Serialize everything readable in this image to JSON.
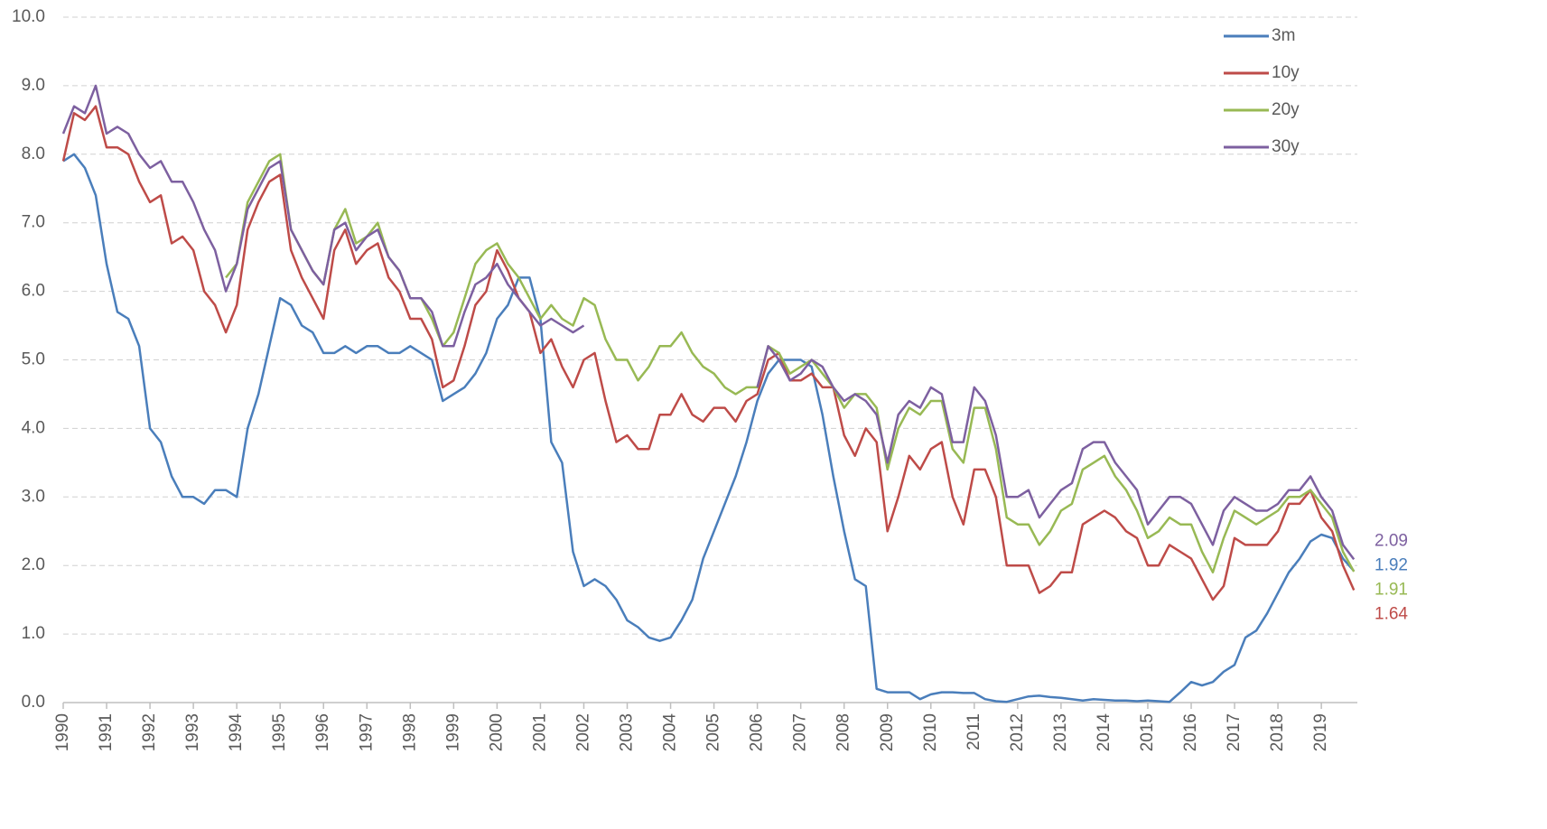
{
  "chart_data": {
    "type": "line",
    "x": [
      1990,
      1990.25,
      1990.5,
      1990.75,
      1991,
      1991.25,
      1991.5,
      1991.75,
      1992,
      1992.25,
      1992.5,
      1992.75,
      1993,
      1993.25,
      1993.5,
      1993.75,
      1994,
      1994.25,
      1994.5,
      1994.75,
      1995,
      1995.25,
      1995.5,
      1995.75,
      1996,
      1996.25,
      1996.5,
      1996.75,
      1997,
      1997.25,
      1997.5,
      1997.75,
      1998,
      1998.25,
      1998.5,
      1998.75,
      1999,
      1999.25,
      1999.5,
      1999.75,
      2000,
      2000.25,
      2000.5,
      2000.75,
      2001,
      2001.25,
      2001.5,
      2001.75,
      2002,
      2002.25,
      2002.5,
      2002.75,
      2003,
      2003.25,
      2003.5,
      2003.75,
      2004,
      2004.25,
      2004.5,
      2004.75,
      2005,
      2005.25,
      2005.5,
      2005.75,
      2006,
      2006.25,
      2006.5,
      2006.75,
      2007,
      2007.25,
      2007.5,
      2007.75,
      2008,
      2008.25,
      2008.5,
      2008.75,
      2009,
      2009.25,
      2009.5,
      2009.75,
      2010,
      2010.25,
      2010.5,
      2010.75,
      2011,
      2011.25,
      2011.5,
      2011.75,
      2012,
      2012.25,
      2012.5,
      2012.75,
      2013,
      2013.25,
      2013.5,
      2013.75,
      2014,
      2014.25,
      2014.5,
      2014.75,
      2015,
      2015.25,
      2015.5,
      2015.75,
      2016,
      2016.25,
      2016.5,
      2016.75,
      2017,
      2017.25,
      2017.5,
      2017.75,
      2018,
      2018.25,
      2018.5,
      2018.75,
      2019,
      2019.25,
      2019.5,
      2019.75
    ],
    "series": [
      {
        "name": "3m",
        "color": "#4a7ebb",
        "values": [
          7.9,
          8.0,
          7.8,
          7.4,
          6.4,
          5.7,
          5.6,
          5.2,
          4.0,
          3.8,
          3.3,
          3.0,
          3.0,
          2.9,
          3.1,
          3.1,
          3.0,
          4.0,
          4.5,
          5.2,
          5.9,
          5.8,
          5.5,
          5.4,
          5.1,
          5.1,
          5.2,
          5.1,
          5.2,
          5.2,
          5.1,
          5.1,
          5.2,
          5.1,
          5.0,
          4.4,
          4.5,
          4.6,
          4.8,
          5.1,
          5.6,
          5.8,
          6.2,
          6.2,
          5.6,
          3.8,
          3.5,
          2.2,
          1.7,
          1.8,
          1.7,
          1.5,
          1.2,
          1.1,
          0.95,
          0.9,
          0.95,
          1.2,
          1.5,
          2.1,
          2.5,
          2.9,
          3.3,
          3.8,
          4.4,
          4.8,
          5.0,
          5.0,
          5.0,
          4.9,
          4.2,
          3.3,
          2.5,
          1.8,
          1.7,
          0.2,
          0.15,
          0.15,
          0.15,
          0.05,
          0.12,
          0.15,
          0.15,
          0.14,
          0.14,
          0.05,
          0.02,
          0.01,
          0.05,
          0.09,
          0.1,
          0.08,
          0.07,
          0.05,
          0.03,
          0.05,
          0.04,
          0.03,
          0.03,
          0.02,
          0.03,
          0.02,
          0.01,
          0.15,
          0.3,
          0.25,
          0.3,
          0.45,
          0.55,
          0.95,
          1.05,
          1.3,
          1.6,
          1.9,
          2.1,
          2.35,
          2.45,
          2.4,
          2.1,
          1.92
        ]
      },
      {
        "name": "10y",
        "color": "#be4b48",
        "values": [
          7.9,
          8.6,
          8.5,
          8.7,
          8.1,
          8.1,
          8.0,
          7.6,
          7.3,
          7.4,
          6.7,
          6.8,
          6.6,
          6.0,
          5.8,
          5.4,
          5.8,
          6.9,
          7.3,
          7.6,
          7.7,
          6.6,
          6.2,
          5.9,
          5.6,
          6.6,
          6.9,
          6.4,
          6.6,
          6.7,
          6.2,
          6.0,
          5.6,
          5.6,
          5.3,
          4.6,
          4.7,
          5.2,
          5.8,
          6.0,
          6.6,
          6.3,
          5.9,
          5.7,
          5.1,
          5.3,
          4.9,
          4.6,
          5.0,
          5.1,
          4.4,
          3.8,
          3.9,
          3.7,
          3.7,
          4.2,
          4.2,
          4.5,
          4.2,
          4.1,
          4.3,
          4.3,
          4.1,
          4.4,
          4.5,
          5.0,
          5.1,
          4.7,
          4.7,
          4.8,
          4.6,
          4.6,
          3.9,
          3.6,
          4.0,
          3.8,
          2.5,
          3.0,
          3.6,
          3.4,
          3.7,
          3.8,
          3.0,
          2.6,
          3.4,
          3.4,
          3.0,
          2.0,
          2.0,
          2.0,
          1.6,
          1.7,
          1.9,
          1.9,
          2.6,
          2.7,
          2.8,
          2.7,
          2.5,
          2.4,
          2.0,
          2.0,
          2.3,
          2.2,
          2.1,
          1.8,
          1.5,
          1.7,
          2.4,
          2.3,
          2.3,
          2.3,
          2.5,
          2.9,
          2.9,
          3.1,
          2.7,
          2.5,
          2.0,
          1.64
        ]
      },
      {
        "name": "20y",
        "color": "#98b954",
        "values": [
          null,
          null,
          null,
          null,
          null,
          null,
          null,
          null,
          null,
          null,
          null,
          null,
          null,
          null,
          null,
          6.2,
          6.4,
          7.3,
          7.6,
          7.9,
          8.0,
          6.9,
          6.6,
          6.3,
          6.1,
          6.9,
          7.2,
          6.7,
          6.8,
          7.0,
          6.5,
          6.3,
          5.9,
          5.9,
          5.6,
          5.2,
          5.4,
          5.9,
          6.4,
          6.6,
          6.7,
          6.4,
          6.2,
          5.9,
          5.6,
          5.8,
          5.6,
          5.5,
          5.9,
          5.8,
          5.3,
          5.0,
          5.0,
          4.7,
          4.9,
          5.2,
          5.2,
          5.4,
          5.1,
          4.9,
          4.8,
          4.6,
          4.5,
          4.6,
          4.6,
          5.2,
          5.1,
          4.8,
          4.9,
          5.0,
          4.8,
          4.6,
          4.3,
          4.5,
          4.5,
          4.3,
          3.4,
          4.0,
          4.3,
          4.2,
          4.4,
          4.4,
          3.7,
          3.5,
          4.3,
          4.3,
          3.7,
          2.7,
          2.6,
          2.6,
          2.3,
          2.5,
          2.8,
          2.9,
          3.4,
          3.5,
          3.6,
          3.3,
          3.1,
          2.8,
          2.4,
          2.5,
          2.7,
          2.6,
          2.6,
          2.2,
          1.9,
          2.4,
          2.8,
          2.7,
          2.6,
          2.7,
          2.8,
          3.0,
          3.0,
          3.1,
          2.9,
          2.7,
          2.2,
          1.91
        ]
      },
      {
        "name": "30y",
        "color": "#7d60a0",
        "values": [
          8.3,
          8.7,
          8.6,
          9.0,
          8.3,
          8.4,
          8.3,
          8.0,
          7.8,
          7.9,
          7.6,
          7.6,
          7.3,
          6.9,
          6.6,
          6.0,
          6.4,
          7.2,
          7.5,
          7.8,
          7.9,
          6.9,
          6.6,
          6.3,
          6.1,
          6.9,
          7.0,
          6.6,
          6.8,
          6.9,
          6.5,
          6.3,
          5.9,
          5.9,
          5.7,
          5.2,
          5.2,
          5.7,
          6.1,
          6.2,
          6.4,
          6.1,
          5.9,
          5.7,
          5.5,
          5.6,
          5.5,
          5.4,
          5.5,
          null,
          null,
          null,
          null,
          null,
          null,
          null,
          null,
          null,
          null,
          null,
          null,
          null,
          null,
          null,
          4.6,
          5.2,
          5.0,
          4.7,
          4.8,
          5.0,
          4.9,
          4.6,
          4.4,
          4.5,
          4.4,
          4.2,
          3.5,
          4.2,
          4.4,
          4.3,
          4.6,
          4.5,
          3.8,
          3.8,
          4.6,
          4.4,
          3.9,
          3.0,
          3.0,
          3.1,
          2.7,
          2.9,
          3.1,
          3.2,
          3.7,
          3.8,
          3.8,
          3.5,
          3.3,
          3.1,
          2.6,
          2.8,
          3.0,
          3.0,
          2.9,
          2.6,
          2.3,
          2.8,
          3.0,
          2.9,
          2.8,
          2.8,
          2.9,
          3.1,
          3.1,
          3.3,
          3.0,
          2.8,
          2.3,
          2.09
        ]
      }
    ],
    "xlim": [
      1990,
      2019.83
    ],
    "xticks": [
      1990,
      1991,
      1992,
      1993,
      1994,
      1995,
      1996,
      1997,
      1998,
      1999,
      2000,
      2001,
      2002,
      2003,
      2004,
      2005,
      2006,
      2007,
      2008,
      2009,
      2010,
      2011,
      2012,
      2013,
      2014,
      2015,
      2016,
      2017,
      2018,
      2019
    ],
    "ylim": [
      0,
      10
    ],
    "yticks": [
      {
        "value": 0,
        "label": "0.0"
      },
      {
        "value": 1,
        "label": "1.0"
      },
      {
        "value": 2,
        "label": "2.0"
      },
      {
        "value": 3,
        "label": "3.0"
      },
      {
        "value": 4,
        "label": "4.0"
      },
      {
        "value": 5,
        "label": "5.0"
      },
      {
        "value": 6,
        "label": "6.0"
      },
      {
        "value": 7,
        "label": "7.0"
      },
      {
        "value": 8,
        "label": "8.0"
      },
      {
        "value": 9,
        "label": "9.0"
      },
      {
        "value": 10,
        "label": "10.0"
      }
    ],
    "grid": true,
    "legend": "top-right"
  }
}
